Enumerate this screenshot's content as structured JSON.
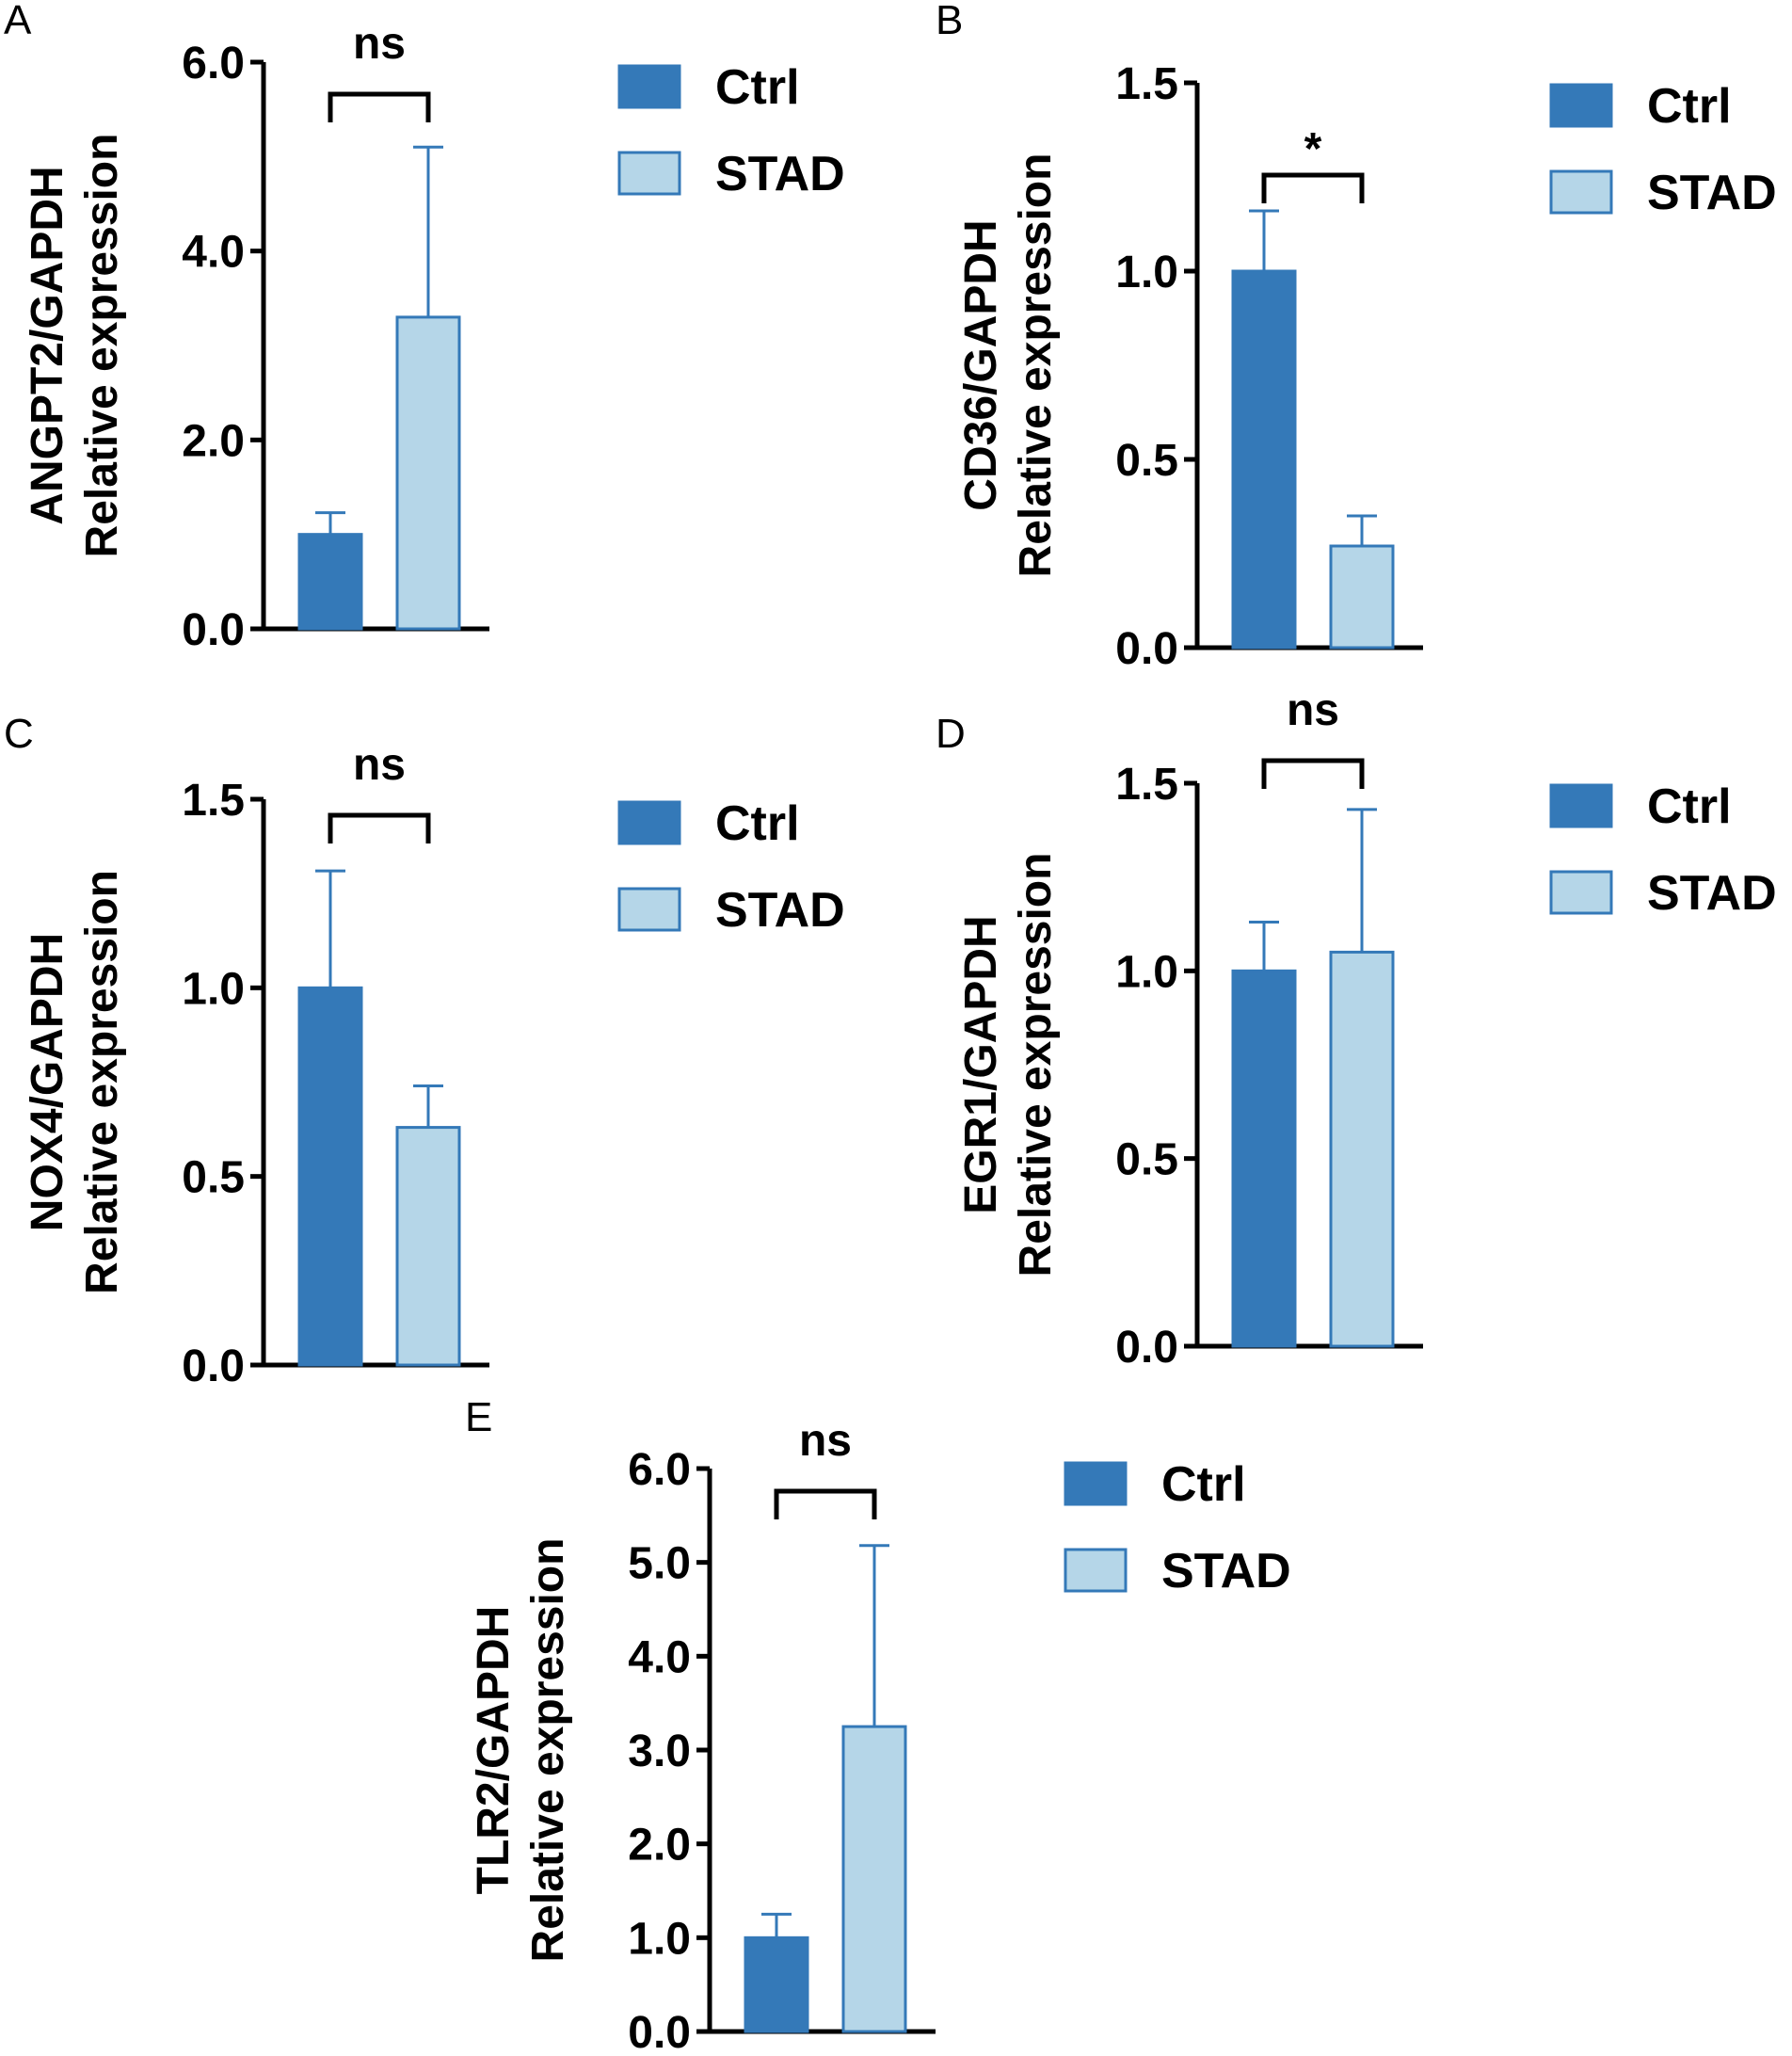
{
  "figure": {
    "legend": [
      {
        "label": "Ctrl",
        "color": "#3479b8"
      },
      {
        "label": "STAD",
        "color": "#b5d6e8"
      }
    ]
  },
  "chart_data": [
    {
      "panel": "A",
      "type": "bar",
      "ylabel_line1": "ANGPT2/GAPDH",
      "ylabel_line2": "Relative expression",
      "categories": [
        "Ctrl",
        "STAD"
      ],
      "values": [
        1.0,
        3.3
      ],
      "errors": [
        0.23,
        1.8
      ],
      "ylim": [
        0,
        6.0
      ],
      "yticks": [
        0,
        2,
        4,
        6
      ],
      "ytick_labels": [
        "0.0",
        "2.0",
        "4.0",
        "6.0"
      ],
      "significance": "ns"
    },
    {
      "panel": "B",
      "type": "bar",
      "ylabel_line1": "CD36/GAPDH",
      "ylabel_line2": "Relative expression",
      "categories": [
        "Ctrl",
        "STAD"
      ],
      "values": [
        1.0,
        0.27
      ],
      "errors": [
        0.16,
        0.08
      ],
      "ylim": [
        0,
        1.5
      ],
      "yticks": [
        0,
        0.5,
        1.0,
        1.5
      ],
      "ytick_labels": [
        "0.0",
        "0.5",
        "1.0",
        "1.5"
      ],
      "significance": "*"
    },
    {
      "panel": "C",
      "type": "bar",
      "ylabel_line1": "NOX4/GAPDH",
      "ylabel_line2": "Relative expression",
      "categories": [
        "Ctrl",
        "STAD"
      ],
      "values": [
        1.0,
        0.63
      ],
      "errors": [
        0.31,
        0.11
      ],
      "ylim": [
        0,
        1.5
      ],
      "yticks": [
        0,
        0.5,
        1.0,
        1.5
      ],
      "ytick_labels": [
        "0.0",
        "0.5",
        "1.0",
        "1.5"
      ],
      "significance": "ns"
    },
    {
      "panel": "D",
      "type": "bar",
      "ylabel_line1": "EGR1/GAPDH",
      "ylabel_line2": "Relative expression",
      "categories": [
        "Ctrl",
        "STAD"
      ],
      "values": [
        1.0,
        1.05
      ],
      "errors": [
        0.13,
        0.38
      ],
      "ylim": [
        0,
        1.5
      ],
      "yticks": [
        0,
        0.5,
        1.0,
        1.5
      ],
      "ytick_labels": [
        "0.0",
        "0.5",
        "1.0",
        "1.5"
      ],
      "significance": "ns"
    },
    {
      "panel": "E",
      "type": "bar",
      "ylabel_line1": "TLR2/GAPDH",
      "ylabel_line2": "Relative expression",
      "categories": [
        "Ctrl",
        "STAD"
      ],
      "values": [
        1.0,
        3.25
      ],
      "errors": [
        0.25,
        1.93
      ],
      "ylim": [
        0,
        6.0
      ],
      "yticks": [
        0,
        1,
        2,
        3,
        4,
        5,
        6
      ],
      "ytick_labels": [
        "0.0",
        "1.0",
        "2.0",
        "3.0",
        "4.0",
        "5.0",
        "6.0"
      ],
      "significance": "ns"
    }
  ]
}
